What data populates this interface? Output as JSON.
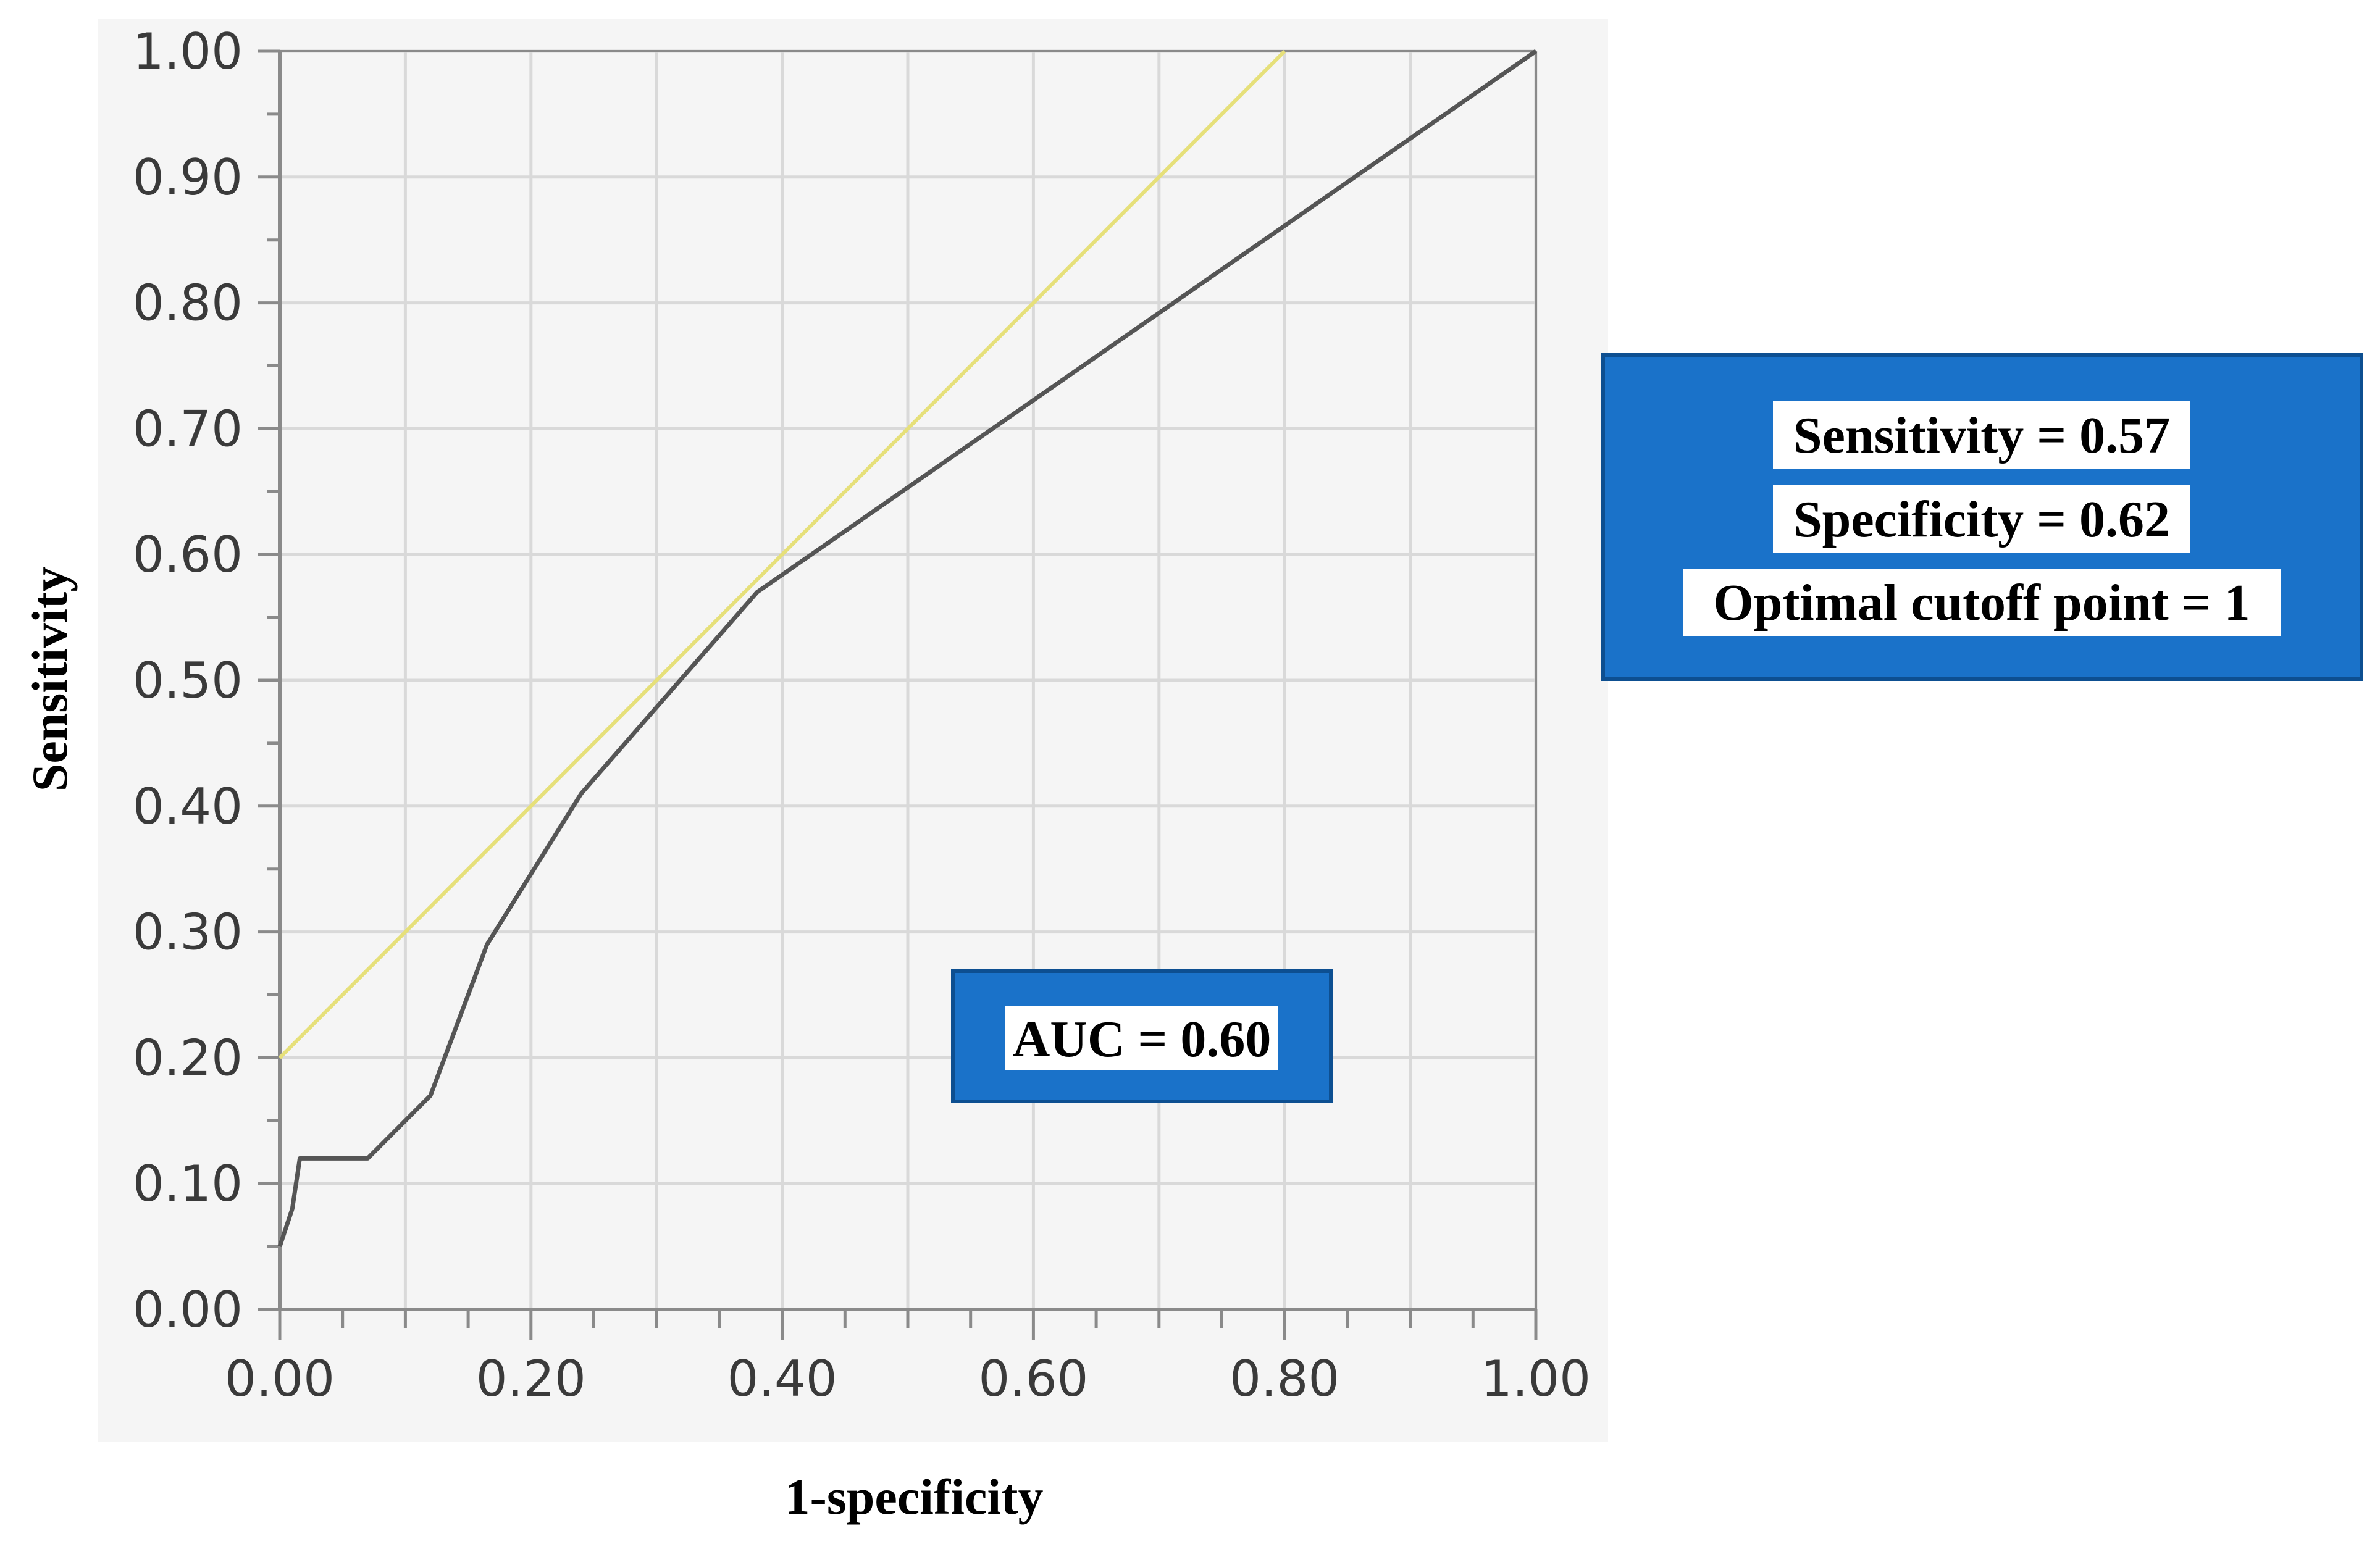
{
  "chart_data": {
    "type": "line",
    "xlabel": "1-specificity",
    "ylabel": "Sensitivity",
    "xlim": [
      0,
      1
    ],
    "ylim": [
      0,
      1
    ],
    "x_ticks": [
      "0.00",
      "0.20",
      "0.40",
      "0.60",
      "0.80",
      "1.00"
    ],
    "y_ticks": [
      "0.00",
      "0.10",
      "0.20",
      "0.30",
      "0.40",
      "0.50",
      "0.60",
      "0.70",
      "0.80",
      "0.90",
      "1.00"
    ],
    "grid": true,
    "series": [
      {
        "color": "#555555",
        "x": [
          0.0,
          0.01,
          0.016,
          0.07,
          0.12,
          0.165,
          0.24,
          0.38,
          1.0
        ],
        "y": [
          0.05,
          0.08,
          0.12,
          0.12,
          0.17,
          0.29,
          0.41,
          0.57,
          1.0
        ]
      },
      {
        "color": "#e6e07a",
        "x": [
          0.0,
          0.8
        ],
        "y": [
          0.2,
          1.0
        ]
      }
    ],
    "annotations": [
      {
        "text": "AUC = 0.60"
      },
      {
        "lines": [
          "Sensitivity = 0.57",
          "Specificity = 0.62",
          "Optimal cutoff point = 1"
        ]
      }
    ]
  },
  "colors": {
    "plot_panel": "#f5f5f5",
    "grid": "#d9d9d9",
    "axis": "#8a8a8a",
    "box_fill": "#1a72c9",
    "box_border": "#0d4f91",
    "label_bg": "#ffffff"
  }
}
